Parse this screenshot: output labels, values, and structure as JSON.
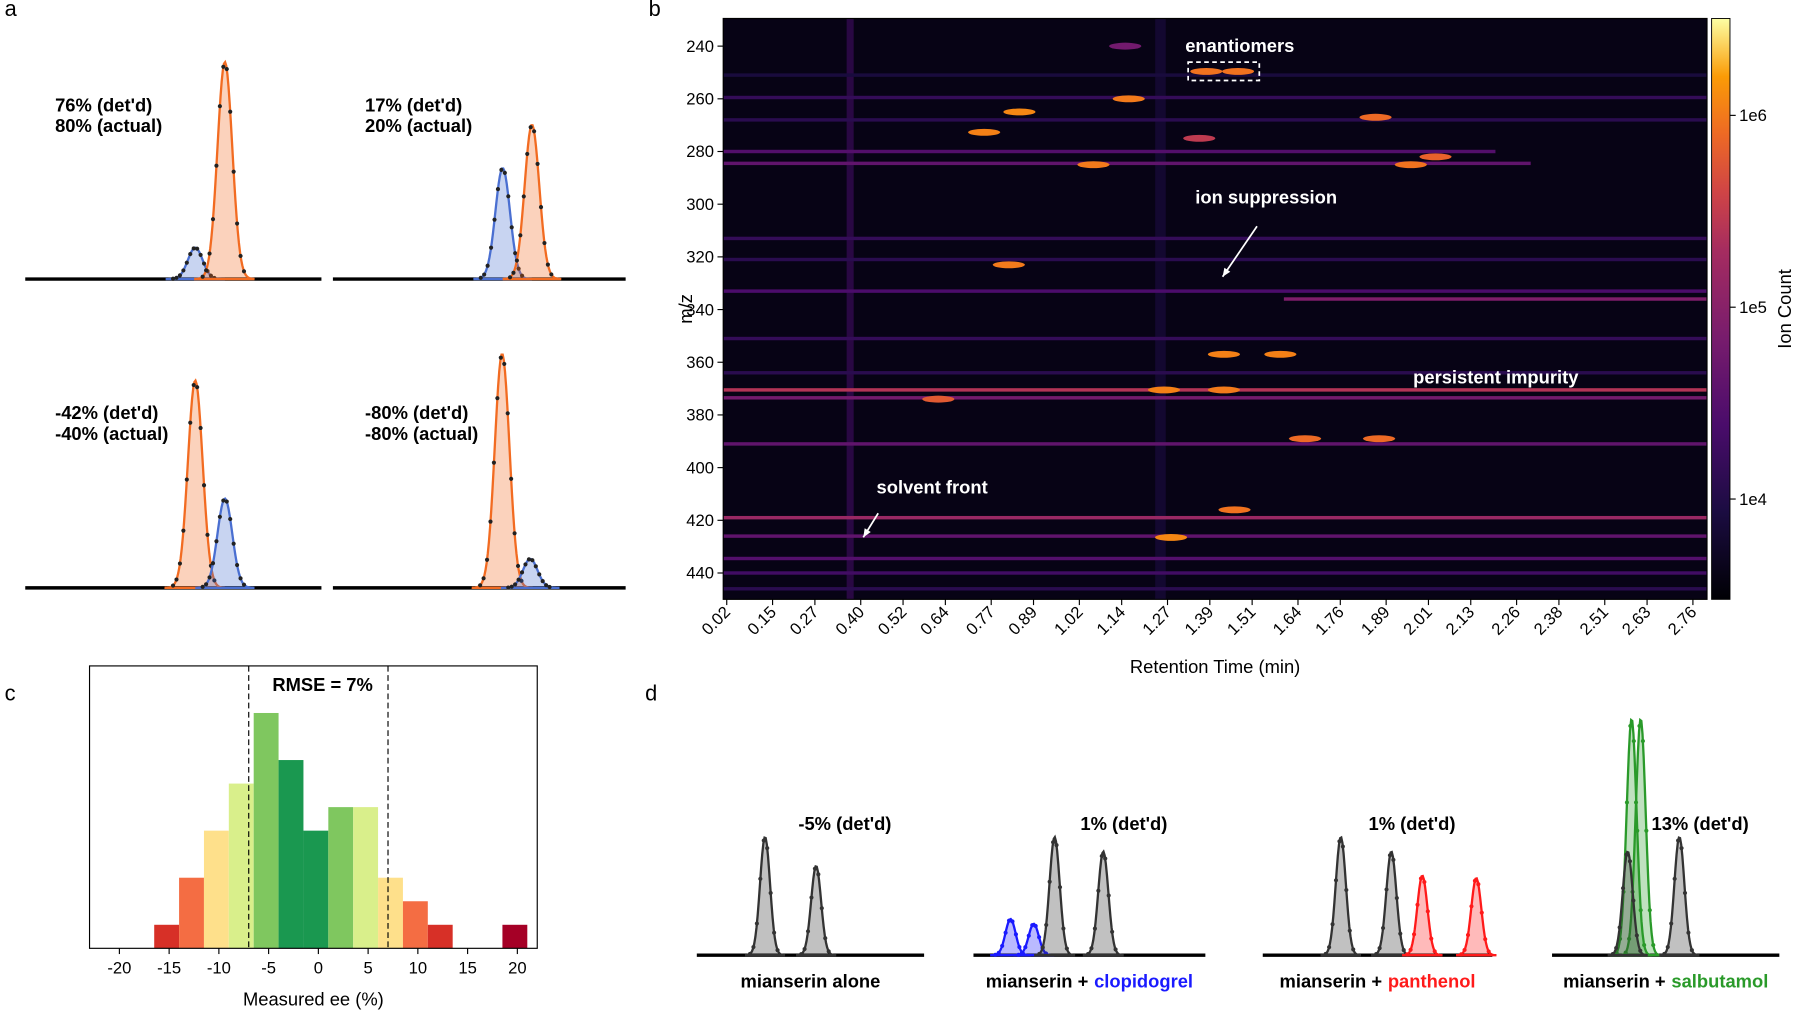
{
  "chart_data": [
    {
      "type": "peaks",
      "label": "a",
      "peak_width": 0.025,
      "panels": [
        {
          "annotation": [
            "76% (det'd)",
            "80% (actual)"
          ],
          "peaks": [
            {
              "center": 0.574,
              "height": 0.13,
              "color": "#4a6fd1"
            },
            {
              "center": 0.674,
              "height": 0.9,
              "color": "#f26b21"
            }
          ]
        },
        {
          "annotation": [
            "17% (det'd)",
            "20% (actual)"
          ],
          "peaks": [
            {
              "center": 0.58,
              "height": 0.46,
              "color": "#4a6fd1"
            },
            {
              "center": 0.68,
              "height": 0.64,
              "color": "#f26b21"
            }
          ]
        },
        {
          "annotation": [
            "-42% (det'd)",
            "-40% (actual)"
          ],
          "peaks": [
            {
              "center": 0.574,
              "height": 0.86,
              "color": "#f26b21"
            },
            {
              "center": 0.674,
              "height": 0.37,
              "color": "#4a6fd1"
            }
          ]
        },
        {
          "annotation": [
            "-80% (det'd)",
            "-80% (actual)"
          ],
          "peaks": [
            {
              "center": 0.578,
              "height": 0.97,
              "color": "#f26b21"
            },
            {
              "center": 0.674,
              "height": 0.12,
              "color": "#4a6fd1"
            }
          ]
        }
      ]
    },
    {
      "type": "heatmap",
      "label": "b",
      "xlabel": "Retention Time (min)",
      "ylabel": "m/z",
      "xlim": [
        0.01,
        2.8
      ],
      "ylim": [
        450,
        229.5
      ],
      "xticks": [
        0.02,
        0.15,
        0.27,
        {
          "value": 0.4,
          "label": "0.40"
        },
        0.52,
        0.64,
        0.77,
        0.89,
        1.02,
        1.14,
        1.27,
        1.39,
        1.51,
        1.64,
        1.76,
        1.89,
        2.01,
        2.13,
        2.26,
        2.38,
        2.51,
        2.63,
        2.76
      ],
      "yticks": [
        240,
        260,
        280,
        300,
        320,
        340,
        360,
        380,
        400,
        420,
        440
      ],
      "colormap": "inferno",
      "log_color": true,
      "clim": [
        3000,
        3200000
      ],
      "colorbar_label": "Ion Count",
      "colorbar_ticks": [
        {
          "value": 10000,
          "label": "1e4"
        },
        {
          "value": 100000,
          "label": "1e5"
        },
        {
          "value": 1000000,
          "label": "1e6"
        }
      ],
      "background": 4000,
      "streaks": [
        {
          "mz": 251,
          "rt": [
            0.01,
            2.8
          ],
          "intensity": 8000
        },
        {
          "mz": 259.5,
          "rt": [
            0.01,
            2.8
          ],
          "intensity": 15000
        },
        {
          "mz": 268,
          "rt": [
            0.01,
            2.8
          ],
          "intensity": 12000
        },
        {
          "mz": 280,
          "rt": [
            0.01,
            2.2
          ],
          "intensity": 30000
        },
        {
          "mz": 284.5,
          "rt": [
            0.01,
            2.3
          ],
          "intensity": 40000
        },
        {
          "mz": 313,
          "rt": [
            0.01,
            2.8
          ],
          "intensity": 15000
        },
        {
          "mz": 321,
          "rt": [
            0.01,
            2.8
          ],
          "intensity": 12000
        },
        {
          "mz": 333,
          "rt": [
            0.01,
            2.8
          ],
          "intensity": 25000
        },
        {
          "mz": 336,
          "rt": [
            1.6,
            2.8
          ],
          "intensity": 80000
        },
        {
          "mz": 351,
          "rt": [
            0.01,
            2.8
          ],
          "intensity": 15000
        },
        {
          "mz": 364,
          "rt": [
            0.01,
            2.8
          ],
          "intensity": 12000
        },
        {
          "mz": 370.5,
          "rt": [
            0.01,
            2.8
          ],
          "intensity": 250000
        },
        {
          "mz": 373.5,
          "rt": [
            0.01,
            2.8
          ],
          "intensity": 60000
        },
        {
          "mz": 391,
          "rt": [
            0.01,
            2.8
          ],
          "intensity": 40000
        },
        {
          "mz": 419,
          "rt": [
            0.01,
            2.8
          ],
          "intensity": 150000
        },
        {
          "mz": 426,
          "rt": [
            0.01,
            2.8
          ],
          "intensity": 40000
        },
        {
          "mz": 434.5,
          "rt": [
            0.01,
            2.8
          ],
          "intensity": 30000
        },
        {
          "mz": 440,
          "rt": [
            0.01,
            2.8
          ],
          "intensity": 20000
        },
        {
          "mz": 446,
          "rt": [
            0.01,
            2.8
          ],
          "intensity": 12000
        }
      ],
      "bands": [
        {
          "rt": 0.37,
          "width": 0.02,
          "intensity": 20000
        },
        {
          "rt": 1.25,
          "width": 0.03,
          "intensity": 9000
        }
      ],
      "spots": [
        {
          "rt": 1.15,
          "mz": 240,
          "intensity": 60000
        },
        {
          "rt": 1.38,
          "mz": 249.6,
          "intensity": 900000
        },
        {
          "rt": 1.47,
          "mz": 249.6,
          "intensity": 900000
        },
        {
          "rt": 1.16,
          "mz": 260,
          "intensity": 1000000
        },
        {
          "rt": 0.85,
          "mz": 265,
          "intensity": 1200000
        },
        {
          "rt": 1.86,
          "mz": 267,
          "intensity": 800000
        },
        {
          "rt": 0.75,
          "mz": 272.7,
          "intensity": 1100000
        },
        {
          "rt": 1.36,
          "mz": 275,
          "intensity": 300000
        },
        {
          "rt": 2.03,
          "mz": 282,
          "intensity": 700000
        },
        {
          "rt": 1.96,
          "mz": 285,
          "intensity": 900000
        },
        {
          "rt": 1.06,
          "mz": 285,
          "intensity": 1000000
        },
        {
          "rt": 0.82,
          "mz": 323,
          "intensity": 1000000
        },
        {
          "rt": 1.43,
          "mz": 357,
          "intensity": 1100000
        },
        {
          "rt": 1.59,
          "mz": 357,
          "intensity": 1100000
        },
        {
          "rt": 0.62,
          "mz": 374,
          "intensity": 600000
        },
        {
          "rt": 1.26,
          "mz": 370.5,
          "intensity": 1100000
        },
        {
          "rt": 1.43,
          "mz": 370.5,
          "intensity": 1000000
        },
        {
          "rt": 1.66,
          "mz": 389,
          "intensity": 800000
        },
        {
          "rt": 1.87,
          "mz": 389,
          "intensity": 800000
        },
        {
          "rt": 1.46,
          "mz": 416,
          "intensity": 900000
        },
        {
          "rt": 1.28,
          "mz": 426.5,
          "intensity": 1200000
        }
      ],
      "annotations": [
        "enantiomers",
        "ion suppression",
        "persistent impurity",
        "solvent front"
      ]
    },
    {
      "type": "histogram",
      "label": "c",
      "xlabel": "Measured ee (%)",
      "bins": [
        -16.5,
        -14,
        -11.5,
        -9,
        -6.5,
        -4,
        -1.5,
        1,
        3.5,
        6,
        8.5,
        11,
        13.5,
        16,
        18.5,
        21
      ],
      "counts": [
        1,
        3,
        5,
        7,
        10,
        8,
        5,
        6,
        6,
        3,
        2,
        1,
        0,
        0,
        1
      ],
      "colors": [
        "#d73027",
        "#f46d43",
        "#fee08b",
        "#d9ef8b",
        "#7fc75f",
        "#1a9850",
        "#1a9850",
        "#7fc75f",
        "#d9ef8b",
        "#fee08b",
        "#f46d43",
        "#d73027",
        "#d73027",
        "#d73027",
        "#a50026"
      ],
      "xlim": [
        -23,
        22
      ],
      "ylim": [
        0,
        12
      ],
      "xticks": [
        -20,
        -15,
        -10,
        -5,
        0,
        5,
        10,
        15,
        20
      ],
      "vlines": [
        -7,
        7
      ],
      "annotation": "RMSE = 7%"
    },
    {
      "type": "chromatograms",
      "label": "d",
      "peak_width": 0.022,
      "panels": [
        {
          "annotation": "-5% (det'd)",
          "label": [
            "mianserin alone"
          ],
          "label_colors": [
            "#000000"
          ],
          "peaks": [
            {
              "center": 0.3,
              "height": 0.49,
              "color": "#333333"
            },
            {
              "center": 0.525,
              "height": 0.37,
              "color": "#333333"
            }
          ]
        },
        {
          "annotation": "1% (det'd)",
          "label": [
            "mianserin +",
            "clopidogrel"
          ],
          "label_colors": [
            "#000000",
            "#1a1aff"
          ],
          "peaks": [
            {
              "center": 0.16,
              "height": 0.15,
              "color": "#1a1aff"
            },
            {
              "center": 0.26,
              "height": 0.13,
              "color": "#1a1aff"
            },
            {
              "center": 0.35,
              "height": 0.49,
              "color": "#333333"
            },
            {
              "center": 0.56,
              "height": 0.43,
              "color": "#333333"
            }
          ]
        },
        {
          "annotation": "1% (det'd)",
          "label": [
            "mianserin +",
            "panthenol"
          ],
          "label_colors": [
            "#000000",
            "#ff1a1a"
          ],
          "peaks": [
            {
              "center": 0.34,
              "height": 0.49,
              "color": "#333333"
            },
            {
              "center": 0.56,
              "height": 0.43,
              "color": "#333333"
            },
            {
              "center": 0.695,
              "height": 0.33,
              "color": "#ff1a1a"
            },
            {
              "center": 0.93,
              "height": 0.32,
              "color": "#ff1a1a"
            }
          ]
        },
        {
          "annotation": "13% (det'd)",
          "label": [
            "mianserin +",
            "salbutamol"
          ],
          "label_colors": [
            "#000000",
            "#2a9a2a"
          ],
          "peaks": [
            {
              "center": 0.35,
              "height": 0.98,
              "color": "#2a9a2a"
            },
            {
              "center": 0.39,
              "height": 0.98,
              "color": "#2a9a2a"
            },
            {
              "center": 0.333,
              "height": 0.43,
              "color": "#333333"
            },
            {
              "center": 0.56,
              "height": 0.49,
              "color": "#333333"
            }
          ]
        }
      ]
    }
  ]
}
